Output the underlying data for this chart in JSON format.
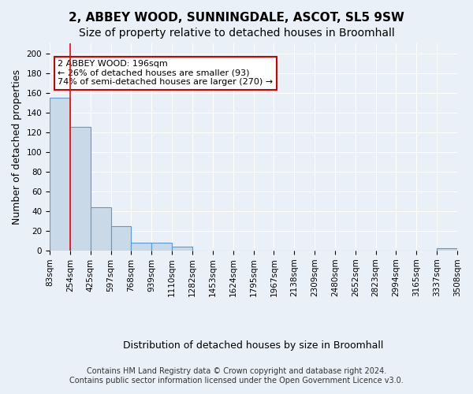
{
  "title": "2, ABBEY WOOD, SUNNINGDALE, ASCOT, SL5 9SW",
  "subtitle": "Size of property relative to detached houses in Broomhall",
  "xlabel": "Distribution of detached houses by size in Broomhall",
  "ylabel": "Number of detached properties",
  "bar_values": [
    155,
    125,
    44,
    25,
    8,
    8,
    4,
    0,
    0,
    0,
    0,
    0,
    0,
    0,
    0,
    0,
    0,
    0,
    0,
    2
  ],
  "bin_labels": [
    "83sqm",
    "254sqm",
    "425sqm",
    "597sqm",
    "768sqm",
    "939sqm",
    "1110sqm",
    "1282sqm",
    "1453sqm",
    "1624sqm",
    "1795sqm",
    "1967sqm",
    "2138sqm",
    "2309sqm",
    "2480sqm",
    "2652sqm",
    "2823sqm",
    "2994sqm",
    "3165sqm",
    "3337sqm",
    "3508sqm"
  ],
  "bar_color": "#c9d9e8",
  "bar_edge_color": "#5b9bd5",
  "background_color": "#eaf0f8",
  "grid_color": "#ffffff",
  "red_line_x": 1,
  "annotation_text": "2 ABBEY WOOD: 196sqm\n← 26% of detached houses are smaller (93)\n74% of semi-detached houses are larger (270) →",
  "annotation_box_color": "#ffffff",
  "annotation_box_edge_color": "#cc0000",
  "ylim": [
    0,
    210
  ],
  "yticks": [
    0,
    20,
    40,
    60,
    80,
    100,
    120,
    140,
    160,
    180,
    200
  ],
  "footer_line1": "Contains HM Land Registry data © Crown copyright and database right 2024.",
  "footer_line2": "Contains public sector information licensed under the Open Government Licence v3.0.",
  "title_fontsize": 11,
  "subtitle_fontsize": 10,
  "axis_label_fontsize": 9,
  "tick_fontsize": 7.5,
  "footer_fontsize": 7
}
